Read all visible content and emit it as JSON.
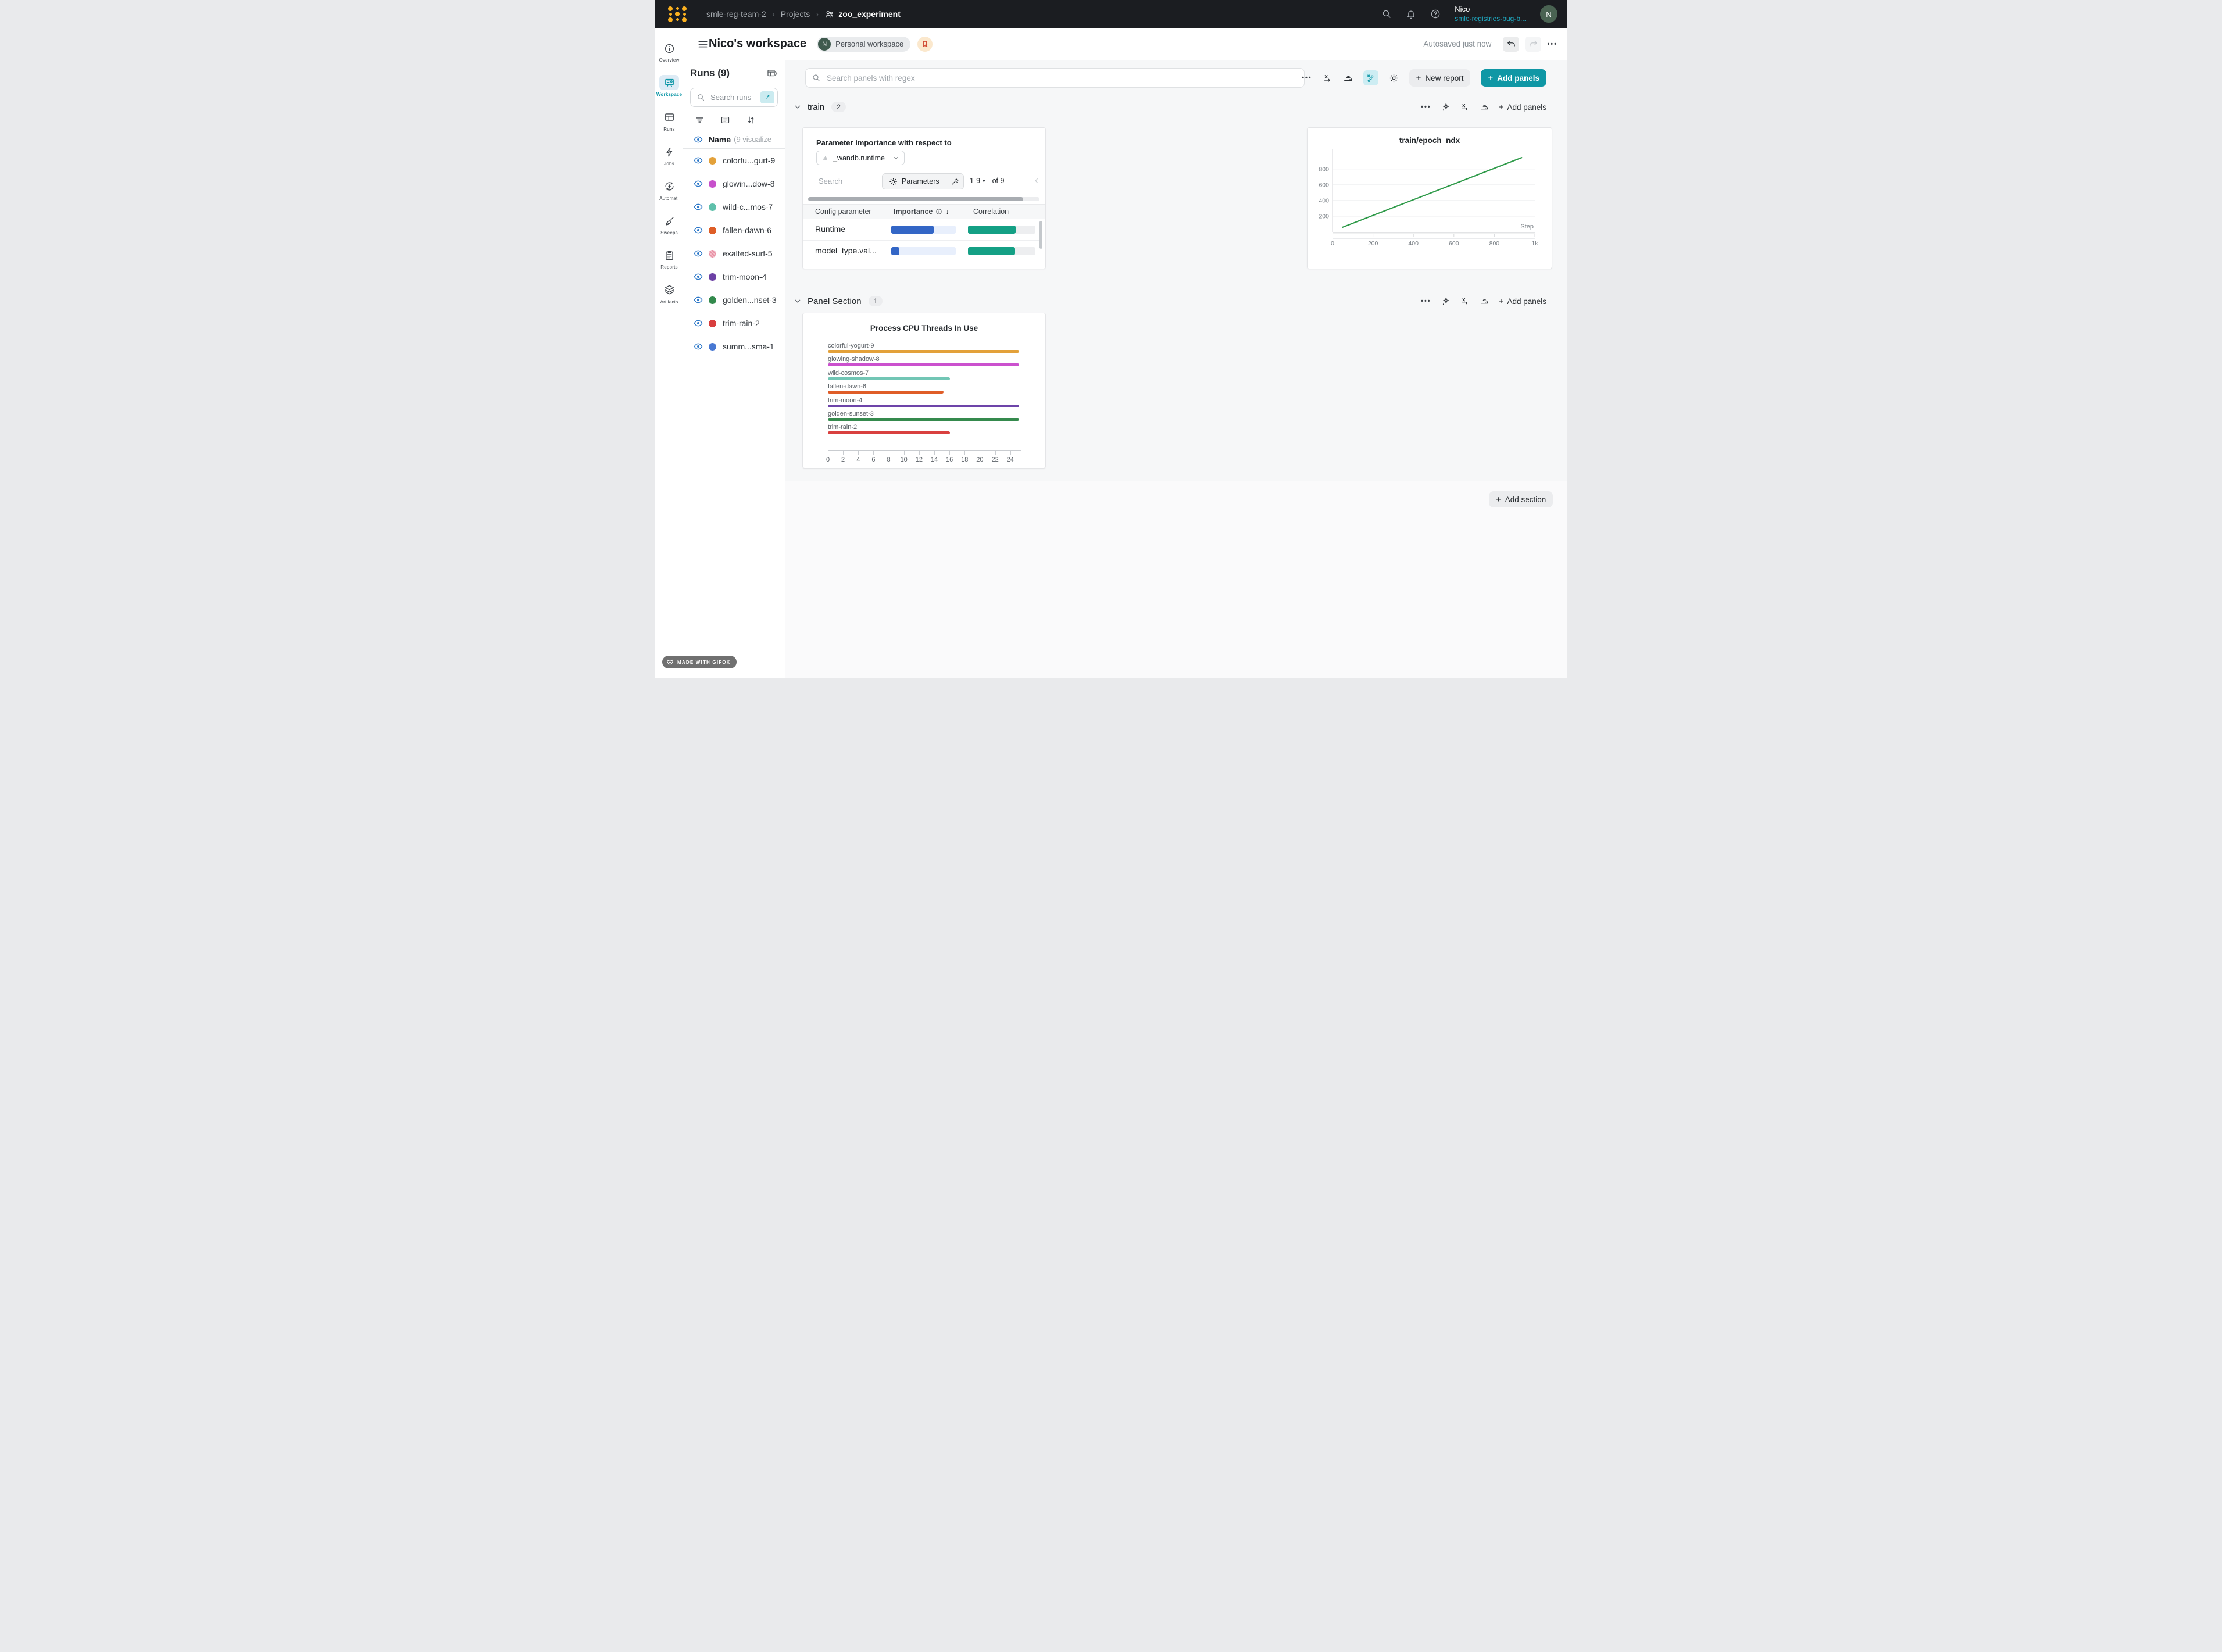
{
  "glyphs": {
    "plus": "+",
    "caret_down": "▾",
    "chevron_right": "›",
    "chevron_left": "‹",
    "kebab": "•••",
    "arrow_down": "↓"
  },
  "topnav": {
    "breadcrumb": [
      "smle-reg-team-2",
      "Projects",
      "zoo_experiment"
    ],
    "user": {
      "name": "Nico",
      "org": "smle-registries-bug-b...",
      "avatar": "N"
    }
  },
  "header": {
    "title": "Nico's workspace",
    "workspace_badge": {
      "avatar": "N",
      "label": "Personal workspace"
    },
    "autosaved": "Autosaved just now"
  },
  "nav_rail": [
    {
      "id": "overview",
      "label": "Overview",
      "icon": "info-icon",
      "active": false
    },
    {
      "id": "workspace",
      "label": "Workspace",
      "icon": "workspace-icon",
      "active": true
    },
    {
      "id": "runs",
      "label": "Runs",
      "icon": "table-icon",
      "active": false
    },
    {
      "id": "jobs",
      "label": "Jobs",
      "icon": "bolt-icon",
      "active": false
    },
    {
      "id": "automations",
      "label": "Automat.",
      "icon": "automations-icon",
      "active": false
    },
    {
      "id": "sweeps",
      "label": "Sweeps",
      "icon": "broom-icon",
      "active": false
    },
    {
      "id": "reports",
      "label": "Reports",
      "icon": "clipboard-icon",
      "active": false
    },
    {
      "id": "artifacts",
      "label": "Artifacts",
      "icon": "layers-icon",
      "active": false
    }
  ],
  "runs_panel": {
    "title": "Runs (9)",
    "search_placeholder": "Search runs",
    "regex_glyph": ".*",
    "list_header": {
      "name": "Name",
      "hint": "(9 visualize"
    },
    "eye_color": "#2D78C8",
    "runs": [
      {
        "name": "colorfu...gurt-9",
        "color": "#E3A13A",
        "pattern": false
      },
      {
        "name": "glowin...dow-8",
        "color": "#C750CB",
        "pattern": false
      },
      {
        "name": "wild-c...mos-7",
        "color": "#5FC0AB",
        "pattern": false
      },
      {
        "name": "fallen-dawn-6",
        "color": "#DE5E27",
        "pattern": false
      },
      {
        "name": "exalted-surf-5",
        "color": "#E891A4",
        "pattern": true
      },
      {
        "name": "trim-moon-4",
        "color": "#6C41A5",
        "pattern": false
      },
      {
        "name": "golden...nset-3",
        "color": "#338A4D",
        "pattern": false
      },
      {
        "name": "trim-rain-2",
        "color": "#D83E3E",
        "pattern": false
      },
      {
        "name": "summ...sma-1",
        "color": "#4878D2",
        "pattern": false
      }
    ]
  },
  "toolbar": {
    "search_placeholder": "Search panels with regex",
    "new_report_label": "New report",
    "add_panels_label": "Add panels"
  },
  "sections": [
    {
      "label": "train",
      "count": "2",
      "add_panels_label": "Add panels"
    },
    {
      "label": "Panel Section",
      "count": "1",
      "add_panels_label": "Add panels"
    }
  ],
  "param_panel": {
    "title": "Parameter importance with respect to",
    "metric": "_wandb.runtime",
    "search_placeholder": "Search",
    "parameters_label": "Parameters",
    "pagination": {
      "range": "1-9",
      "of": "of 9"
    },
    "columns": [
      "Config parameter",
      "Importance",
      "Correlation"
    ],
    "importance_color": "#3366C6",
    "importance_track": "#E8EFFC",
    "correlation_color": "#14A085",
    "correlation_track": "#EDEEF0",
    "rows": [
      {
        "name": "Runtime",
        "importance": 0.66,
        "correlation": 0.71
      },
      {
        "name": "model_type.val...",
        "importance": 0.13,
        "correlation": 0.7
      }
    ]
  },
  "add_section_label": "Add section",
  "gifox_label": "MADE WITH GIFOX",
  "chart_data": [
    {
      "type": "line",
      "title": "train/epoch_ndx",
      "xlabel": "Step",
      "xlim": [
        0,
        1000
      ],
      "ylim": [
        0,
        1050
      ],
      "x_ticks": [
        0,
        200,
        400,
        600,
        800,
        1000
      ],
      "x_tick_labels": [
        "0",
        "200",
        "400",
        "600",
        "800",
        "1k"
      ],
      "y_ticks": [
        200,
        400,
        600,
        800
      ],
      "grid": "horizontal",
      "legend": "none",
      "series": [
        {
          "name": "train/epoch_ndx",
          "color": "#2E9A49",
          "points": [
            [
              50,
              60
            ],
            [
              935,
              945
            ]
          ]
        }
      ]
    },
    {
      "type": "bar",
      "orientation": "horizontal",
      "title": "Process CPU Threads In Use",
      "categories": [
        "colorful-yogurt-9",
        "glowing-shadow-8",
        "wild-cosmos-7",
        "fallen-dawn-6",
        "trim-moon-4",
        "golden-sunset-3",
        "trim-rain-2"
      ],
      "values": [
        25.2,
        25.2,
        16.1,
        15.2,
        25.2,
        25.2,
        16.1
      ],
      "colors": [
        "#E3A13A",
        "#CB51CE",
        "#72C6B5",
        "#DF5D28",
        "#6D44A9",
        "#358A4D",
        "#D9403F"
      ],
      "xlim": [
        0,
        25.4
      ],
      "x_ticks": [
        0,
        2,
        4,
        6,
        8,
        10,
        12,
        14,
        16,
        18,
        20,
        22,
        24
      ],
      "xlabel": "",
      "ylabel": ""
    }
  ]
}
